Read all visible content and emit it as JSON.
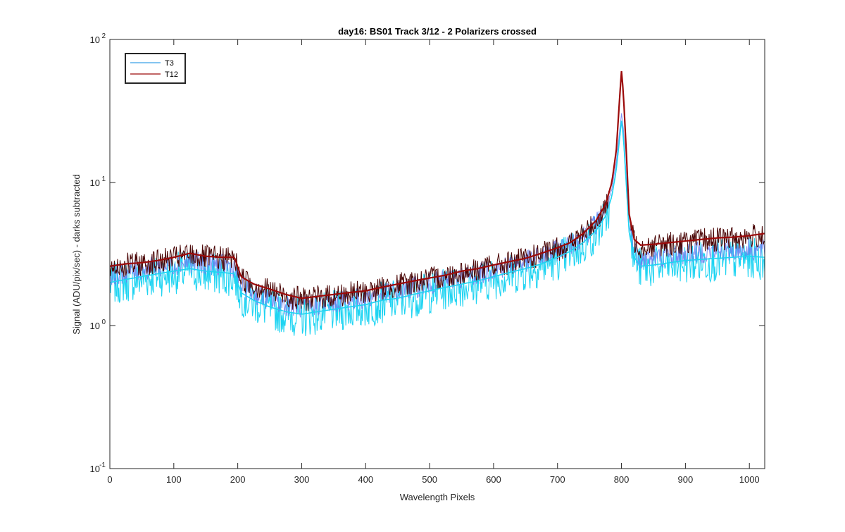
{
  "chart_data": {
    "type": "line",
    "title": "day16: BS01  Track 3/12 - 2 Polarizers crossed",
    "xlabel": "Wavelength Pixels",
    "ylabel": "Signal (ADU/pix/sec) - darks subtracted",
    "xlim": [
      0,
      1024
    ],
    "ylim": [
      0.1,
      100
    ],
    "yscale": "log",
    "grid": false,
    "legend_position": "top-left",
    "x_ticks": [
      {
        "value": 0,
        "label": "0"
      },
      {
        "value": 100,
        "label": "100"
      },
      {
        "value": 200,
        "label": "200"
      },
      {
        "value": 300,
        "label": "300"
      },
      {
        "value": 400,
        "label": "400"
      },
      {
        "value": 500,
        "label": "500"
      },
      {
        "value": 600,
        "label": "600"
      },
      {
        "value": 700,
        "label": "700"
      },
      {
        "value": 800,
        "label": "800"
      },
      {
        "value": 900,
        "label": "900"
      },
      {
        "value": 1000,
        "label": "1000"
      }
    ],
    "y_ticks": [
      {
        "value": 0.1,
        "base": "10",
        "exp": "-1"
      },
      {
        "value": 1,
        "base": "10",
        "exp": "0"
      },
      {
        "value": 10,
        "base": "10",
        "exp": "1"
      },
      {
        "value": 100,
        "base": "10",
        "exp": "2"
      }
    ],
    "series": [
      {
        "name": "T3",
        "color": "#1fd4f2",
        "legend_color": "#3aa2e6",
        "x": [
          0,
          25,
          50,
          75,
          100,
          125,
          150,
          175,
          195,
          205,
          225,
          250,
          275,
          300,
          325,
          350,
          375,
          400,
          425,
          450,
          475,
          500,
          525,
          550,
          575,
          600,
          625,
          650,
          675,
          700,
          720,
          740,
          760,
          775,
          785,
          792,
          797,
          800,
          803,
          808,
          812,
          820,
          830,
          850,
          875,
          900,
          925,
          950,
          975,
          1000,
          1024
        ],
        "values": [
          2.0,
          2.1,
          2.2,
          2.3,
          2.4,
          2.5,
          2.4,
          2.35,
          2.3,
          1.7,
          1.5,
          1.35,
          1.25,
          1.2,
          1.25,
          1.3,
          1.35,
          1.4,
          1.5,
          1.55,
          1.65,
          1.75,
          1.85,
          1.95,
          2.05,
          2.2,
          2.35,
          2.5,
          2.7,
          3.0,
          3.3,
          3.8,
          4.6,
          5.8,
          8.0,
          12.5,
          20.0,
          27.0,
          21.0,
          9.0,
          4.5,
          3.0,
          2.6,
          2.65,
          2.75,
          2.85,
          2.9,
          2.95,
          3.0,
          3.05,
          3.0
        ]
      },
      {
        "name": "T12",
        "color": "#9c0a0a",
        "legend_color": "#9c0a0a",
        "x": [
          0,
          25,
          50,
          75,
          100,
          125,
          150,
          175,
          195,
          205,
          225,
          250,
          275,
          300,
          325,
          350,
          375,
          400,
          425,
          450,
          475,
          500,
          525,
          550,
          575,
          600,
          625,
          650,
          675,
          700,
          720,
          740,
          760,
          775,
          785,
          792,
          797,
          800,
          803,
          808,
          812,
          820,
          830,
          850,
          875,
          900,
          925,
          950,
          975,
          1000,
          1024
        ],
        "values": [
          2.6,
          2.7,
          2.75,
          2.85,
          3.0,
          3.2,
          3.05,
          3.0,
          3.0,
          2.2,
          1.95,
          1.8,
          1.65,
          1.55,
          1.6,
          1.65,
          1.7,
          1.75,
          1.85,
          1.95,
          2.05,
          2.15,
          2.25,
          2.4,
          2.5,
          2.65,
          2.8,
          2.95,
          3.2,
          3.5,
          3.8,
          4.4,
          5.4,
          7.0,
          10.0,
          17.0,
          38.0,
          60.0,
          42.0,
          15.0,
          6.0,
          4.0,
          3.65,
          3.7,
          3.8,
          3.9,
          4.0,
          4.1,
          4.15,
          4.25,
          4.4
        ]
      }
    ]
  }
}
